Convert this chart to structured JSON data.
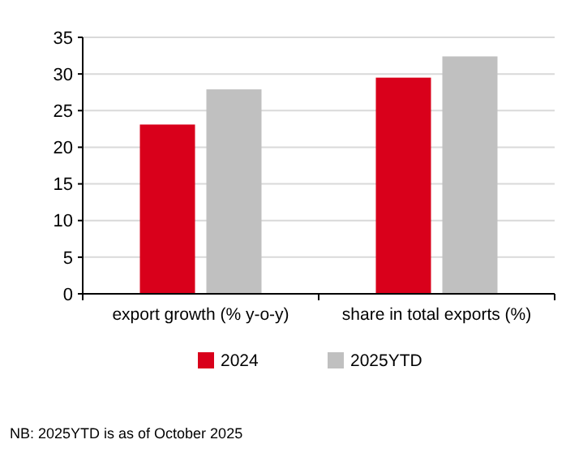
{
  "chart_data": {
    "type": "bar",
    "categories": [
      "export growth (% y-o-y)",
      "share in total exports (%)"
    ],
    "series": [
      {
        "name": "2024",
        "color": "#d9001b",
        "values": [
          23.1,
          29.5
        ]
      },
      {
        "name": "2025YTD",
        "color": "#c0c0c0",
        "values": [
          27.9,
          32.4
        ]
      }
    ],
    "ylim": [
      0,
      35
    ],
    "yticks": [
      0,
      5,
      10,
      15,
      20,
      25,
      30,
      35
    ],
    "grid": "y",
    "legend": "bottom",
    "annotations": [
      "NB: 2025YTD is as of October 2025"
    ]
  }
}
